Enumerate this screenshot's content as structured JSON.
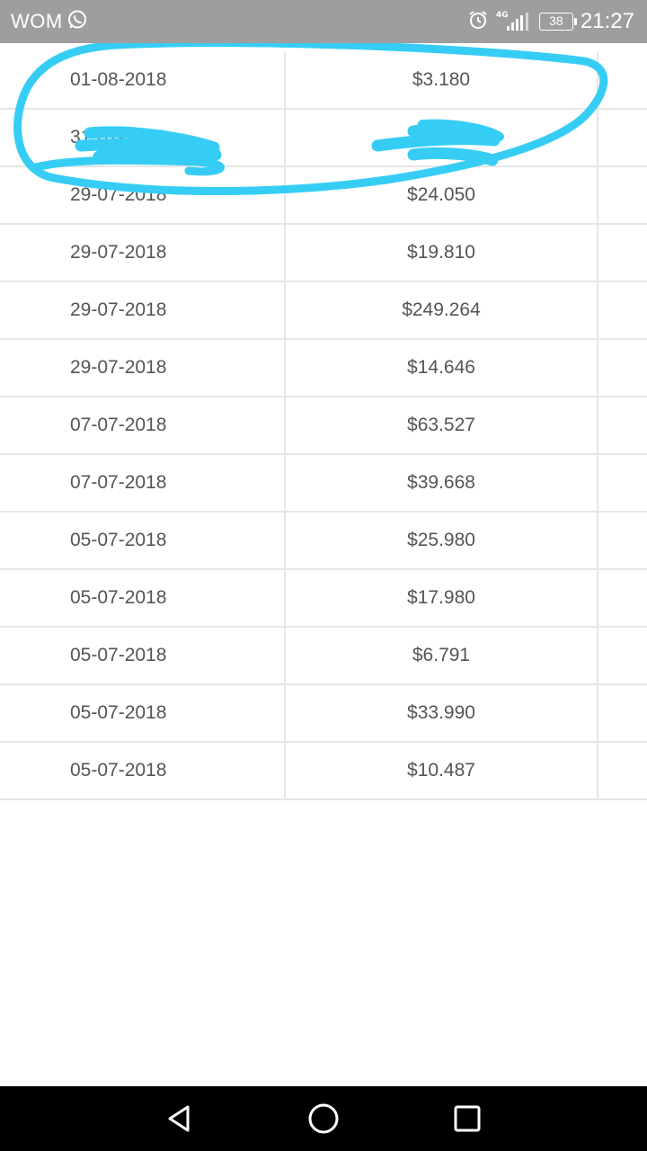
{
  "status_bar": {
    "carrier": "WOM",
    "network": "4G",
    "battery": "38",
    "time": "21:27",
    "icons": [
      "whatsapp-icon",
      "alarm-icon",
      "signal-icon",
      "battery-icon"
    ]
  },
  "rows": [
    {
      "date": "01-08-2018",
      "amount": "$3.180"
    },
    {
      "date": "31-07-2018",
      "amount": "$"
    },
    {
      "date": "29-07-2018",
      "amount": "$24.050"
    },
    {
      "date": "29-07-2018",
      "amount": "$19.810"
    },
    {
      "date": "29-07-2018",
      "amount": "$249.264"
    },
    {
      "date": "29-07-2018",
      "amount": "$14.646"
    },
    {
      "date": "07-07-2018",
      "amount": "$63.527"
    },
    {
      "date": "07-07-2018",
      "amount": "$39.668"
    },
    {
      "date": "05-07-2018",
      "amount": "$25.980"
    },
    {
      "date": "05-07-2018",
      "amount": "$17.980"
    },
    {
      "date": "05-07-2018",
      "amount": "$6.791"
    },
    {
      "date": "05-07-2018",
      "amount": "$33.990"
    },
    {
      "date": "05-07-2018",
      "amount": "$10.487"
    }
  ],
  "annotation": {
    "color": "#36cdf5"
  },
  "nav_bar": {
    "icons": [
      "back-icon",
      "home-icon",
      "recents-icon"
    ]
  },
  "colors": {
    "status_bar": "#9e9e9e",
    "text": "#555555",
    "divider": "#e6e6e6",
    "nav_bar": "#000000"
  }
}
